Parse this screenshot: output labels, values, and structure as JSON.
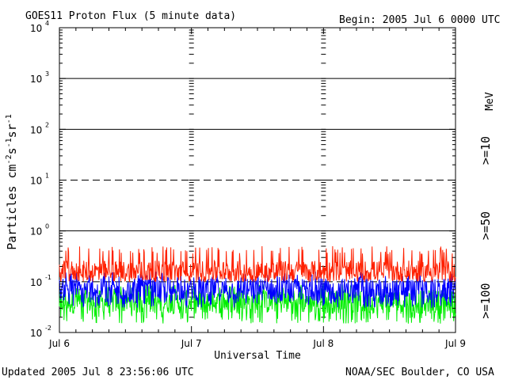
{
  "header": {
    "title": "GOES11 Proton Flux (5 minute data)",
    "begin": "Begin: 2005 Jul 6 0000 UTC"
  },
  "footer": {
    "updated": "Updated 2005 Jul  8 23:56:06 UTC",
    "credit": "NOAA/SEC Boulder, CO USA"
  },
  "chart_data": {
    "type": "line",
    "title": "GOES11 Proton Flux (5 minute data)",
    "xlabel": "Universal Time",
    "ylabel": "Particles cm-2 s-1 sr-1",
    "yscale": "log",
    "ylim": [
      0.01,
      10000
    ],
    "y_ticks": [
      {
        "base": "10",
        "exp": "-2"
      },
      {
        "base": "10",
        "exp": "-1"
      },
      {
        "base": "10",
        "exp": "0"
      },
      {
        "base": "10",
        "exp": "1"
      },
      {
        "base": "10",
        "exp": "2"
      },
      {
        "base": "10",
        "exp": "3"
      },
      {
        "base": "10",
        "exp": "4"
      }
    ],
    "x_ticks": [
      "Jul 6",
      "Jul 7",
      "Jul 8",
      "Jul 9"
    ],
    "xlim_days": [
      0,
      3
    ],
    "unit_label": "MeV",
    "grid": "solid horizontal lines at 10^0, 10^2, 10^3; dashed at 10^-1 and 10^1",
    "series": [
      {
        "name": ">=10",
        "color": "#ff2000",
        "typical": 0.16,
        "range": [
          0.1,
          0.5
        ]
      },
      {
        "name": ">=50",
        "color": "#0000ff",
        "typical": 0.07,
        "range": [
          0.03,
          0.16
        ]
      },
      {
        "name": ">=100",
        "color": "#00ee00",
        "typical": 0.04,
        "range": [
          0.015,
          0.09
        ]
      }
    ]
  }
}
